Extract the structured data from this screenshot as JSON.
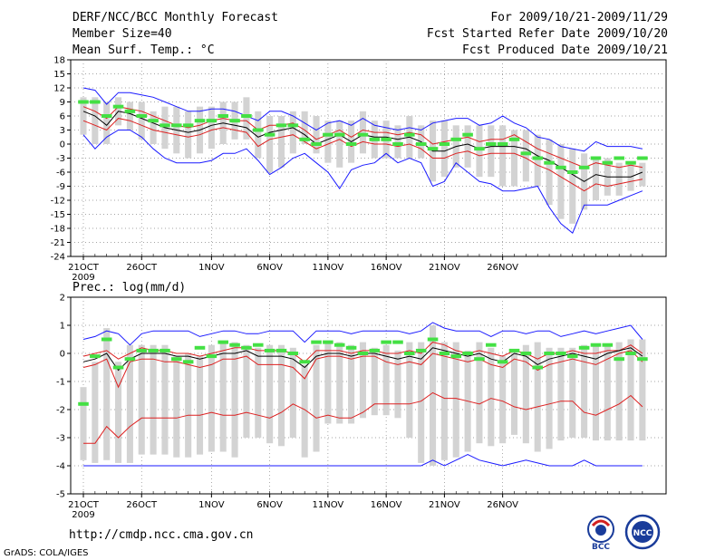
{
  "header": {
    "title": "DERF/NCC/BCC Monthly Forecast",
    "member": "Member Size=40",
    "variable": "Mean Surf. Temp.: °C",
    "for": "For 2009/10/21-2009/11/29",
    "started": "Fcst Started Refer Date 2009/10/20",
    "produced": "Fcst Produced Date 2009/10/21"
  },
  "footer": {
    "url": "http://cmdp.ncc.cma.gov.cn",
    "grads": "GrADS: COLA/IGES",
    "logo1": "BCC",
    "logo2": "NCC"
  },
  "colors": {
    "box": "#d3d3d3",
    "mean": "#44e044",
    "blue": "#1a1aff",
    "red": "#dd2020",
    "black": "#000000"
  },
  "chart_data": [
    {
      "type": "line",
      "title": "Mean Surf. Temp.: °C",
      "ylim": [
        -24,
        18
      ],
      "yticks": [
        18,
        15,
        12,
        9,
        6,
        3,
        0,
        -3,
        -6,
        -9,
        -12,
        -15,
        -18,
        -21,
        -24
      ],
      "x_tick_labels": [
        "21OCT",
        "26OCT",
        "1NOV",
        "6NOV",
        "11NOV",
        "16NOV",
        "21NOV",
        "26NOV"
      ],
      "x_tick_days": [
        0,
        5,
        11,
        16,
        21,
        26,
        31,
        36
      ],
      "x_sublabel": "2009",
      "series": [
        {
          "name": "max",
          "color": "blue",
          "values": [
            12,
            11.5,
            8.5,
            11,
            11,
            10.5,
            10,
            9,
            8,
            7,
            7,
            7.5,
            7.5,
            7,
            6,
            5,
            7,
            7,
            6,
            4.5,
            3,
            4.5,
            5,
            4,
            5.5,
            4,
            3.5,
            3,
            3.5,
            3,
            4.5,
            5,
            5.5,
            5.5,
            4,
            4.5,
            6,
            4.5,
            3.5,
            1.5,
            1,
            -0.5,
            -1,
            -1.5,
            0.5,
            -0.5,
            -0.5,
            -0.5,
            -1
          ]
        },
        {
          "name": "upper",
          "color": "red",
          "values": [
            8,
            7,
            5.5,
            8,
            7.5,
            7,
            6,
            5,
            4,
            3.5,
            4,
            5,
            5.5,
            5,
            5,
            3,
            4,
            4,
            4.5,
            3,
            1,
            2,
            3,
            1.5,
            3,
            2.5,
            2.5,
            2,
            2.5,
            2,
            0,
            0.5,
            1,
            1.5,
            0.5,
            1,
            1,
            2,
            0.5,
            -1,
            -2,
            -3,
            -4,
            -5,
            -4,
            -4.5,
            -5,
            -4.5,
            -5
          ]
        },
        {
          "name": "median",
          "color": "black",
          "values": [
            7,
            6,
            4,
            7,
            6.5,
            5.5,
            4.5,
            3.5,
            3,
            2.5,
            3,
            4,
            4.5,
            4,
            3.5,
            1.5,
            2.5,
            3,
            3.5,
            2,
            0,
            1,
            2,
            0.5,
            2,
            1.5,
            1.5,
            1,
            1.5,
            0.5,
            -1.5,
            -1.5,
            -0.5,
            0,
            -1,
            -0.5,
            -0.5,
            -0.5,
            -1,
            -2.5,
            -3.5,
            -5,
            -6.5,
            -8,
            -6.5,
            -7,
            -7,
            -7,
            -6
          ]
        },
        {
          "name": "lower",
          "color": "red",
          "values": [
            5,
            4,
            3,
            5.5,
            5,
            4,
            3,
            2.5,
            2,
            1.5,
            2,
            3,
            3.5,
            3,
            2.5,
            -0.5,
            1,
            1.5,
            2,
            0.5,
            -1,
            0,
            1,
            -0.5,
            0.5,
            0,
            0,
            -0.5,
            0,
            -1,
            -3,
            -3,
            -2,
            -1.5,
            -2.5,
            -2,
            -2,
            -2,
            -3,
            -4.5,
            -5.5,
            -7,
            -8.5,
            -10,
            -8.5,
            -9,
            -8.5,
            -8,
            -7.5
          ]
        },
        {
          "name": "min",
          "color": "blue",
          "values": [
            2,
            -1,
            1.5,
            3,
            3,
            1.5,
            -1,
            -3,
            -4,
            -4,
            -4,
            -3.5,
            -2,
            -2,
            -1,
            -3.5,
            -6.5,
            -5,
            -3,
            -2,
            -4,
            -6,
            -9.5,
            -5.5,
            -4.5,
            -4,
            -2,
            -4,
            -3,
            -4,
            -9,
            -8,
            -4,
            -6,
            -8,
            -8.5,
            -10,
            -10,
            -9.5,
            -9,
            -13.5,
            -17,
            -19,
            -13,
            -13,
            -13,
            -12,
            -11,
            -10
          ]
        }
      ],
      "box_top": [
        10,
        10,
        9,
        10,
        9,
        9,
        7,
        8,
        8,
        7,
        8,
        8,
        9,
        9,
        10,
        7,
        6,
        6,
        7,
        7,
        6,
        5,
        5,
        5,
        7,
        5,
        5,
        4,
        6,
        4,
        5,
        5,
        4,
        4,
        4,
        4,
        4,
        3,
        3,
        2,
        1,
        0,
        -1,
        -2,
        -3,
        -3,
        -4,
        -4,
        -4
      ],
      "box_bottom": [
        2,
        0,
        0,
        4,
        3,
        1,
        0,
        -1,
        -2,
        -3,
        -2,
        -1,
        0,
        1,
        1,
        -3,
        -6,
        -5,
        -2,
        0,
        -2,
        -4,
        -5,
        -4,
        -2,
        -3,
        -3,
        -3,
        -3,
        -3,
        -8,
        -7,
        -5,
        -5,
        -7,
        -7,
        -9,
        -9,
        -8,
        -9,
        -13,
        -16,
        -17,
        -14,
        -12,
        -11,
        -11,
        -10,
        -9
      ],
      "mean_marks": [
        9,
        9,
        6,
        8,
        7,
        6,
        5,
        4,
        4,
        4,
        5,
        5,
        6,
        5,
        6,
        3,
        2,
        4,
        4,
        1,
        0,
        2,
        2,
        0,
        2,
        1,
        1,
        0,
        2,
        0,
        -1,
        0,
        1,
        2,
        -1,
        0,
        0,
        1,
        -2,
        -3,
        -4,
        -5,
        -6,
        -5,
        -3,
        -4,
        -3,
        -4,
        -3
      ]
    },
    {
      "type": "line",
      "title": "Prec.: log(mm/d)",
      "ylim": [
        -5,
        2
      ],
      "yticks": [
        2,
        1,
        0,
        -1,
        -2,
        -3,
        -4,
        -5
      ],
      "x_tick_labels": [
        "21OCT",
        "26OCT",
        "1NOV",
        "6NOV",
        "11NOV",
        "16NOV",
        "21NOV",
        "26NOV"
      ],
      "x_tick_days": [
        0,
        5,
        11,
        16,
        21,
        26,
        31,
        36
      ],
      "x_sublabel": "2009",
      "series": [
        {
          "name": "max",
          "color": "blue",
          "values": [
            0.5,
            0.6,
            0.8,
            0.7,
            0.3,
            0.7,
            0.8,
            0.8,
            0.8,
            0.8,
            0.6,
            0.7,
            0.8,
            0.8,
            0.7,
            0.7,
            0.8,
            0.8,
            0.8,
            0.4,
            0.8,
            0.8,
            0.8,
            0.7,
            0.8,
            0.8,
            0.8,
            0.8,
            0.7,
            0.8,
            1.1,
            0.9,
            0.8,
            0.8,
            0.8,
            0.6,
            0.8,
            0.8,
            0.7,
            0.8,
            0.8,
            0.6,
            0.7,
            0.8,
            0.7,
            0.8,
            0.9,
            1.0,
            0.5
          ]
        },
        {
          "name": "upper",
          "color": "red",
          "values": [
            -0.1,
            0.0,
            0.1,
            -0.2,
            0.0,
            0.2,
            0.1,
            0.1,
            0.0,
            0.0,
            -0.1,
            0.0,
            0.1,
            0.2,
            0.2,
            0.1,
            0.1,
            0.1,
            0.0,
            -0.3,
            0.1,
            0.1,
            0.1,
            0.0,
            0.1,
            0.1,
            0.0,
            0.0,
            0.1,
            0.0,
            0.4,
            0.3,
            0.1,
            0.0,
            0.1,
            0.0,
            -0.1,
            0.1,
            0.0,
            -0.2,
            0.0,
            0.0,
            0.1,
            0.0,
            0.0,
            0.1,
            0.1,
            0.3,
            0.0
          ]
        },
        {
          "name": "median",
          "color": "black",
          "values": [
            -0.3,
            -0.2,
            0.0,
            -0.6,
            -0.2,
            0.0,
            0.0,
            0.0,
            -0.1,
            -0.1,
            -0.2,
            -0.1,
            0.0,
            0.0,
            0.1,
            -0.1,
            -0.1,
            -0.1,
            -0.2,
            -0.5,
            -0.1,
            0.0,
            0.0,
            -0.1,
            0.0,
            0.0,
            -0.1,
            -0.2,
            -0.1,
            -0.2,
            0.2,
            0.1,
            0.0,
            -0.1,
            0.0,
            -0.2,
            -0.3,
            0.0,
            -0.1,
            -0.4,
            -0.2,
            -0.1,
            0.0,
            -0.1,
            -0.2,
            0.0,
            0.1,
            0.2,
            -0.1
          ]
        },
        {
          "name": "lower",
          "color": "red",
          "values": [
            -0.5,
            -0.4,
            -0.2,
            -1.2,
            -0.3,
            -0.2,
            -0.2,
            -0.3,
            -0.3,
            -0.4,
            -0.5,
            -0.4,
            -0.2,
            -0.2,
            -0.1,
            -0.4,
            -0.4,
            -0.4,
            -0.5,
            -0.9,
            -0.2,
            -0.1,
            -0.1,
            -0.2,
            -0.1,
            -0.1,
            -0.3,
            -0.4,
            -0.3,
            -0.4,
            0.0,
            -0.1,
            -0.2,
            -0.3,
            -0.2,
            -0.4,
            -0.5,
            -0.2,
            -0.3,
            -0.6,
            -0.4,
            -0.3,
            -0.2,
            -0.3,
            -0.4,
            -0.2,
            0.0,
            0.1,
            -0.3
          ]
        },
        {
          "name": "lower2",
          "color": "red",
          "values": [
            -3.2,
            -3.2,
            -2.6,
            -3.0,
            -2.6,
            -2.3,
            -2.3,
            -2.3,
            -2.3,
            -2.2,
            -2.2,
            -2.1,
            -2.2,
            -2.2,
            -2.1,
            -2.2,
            -2.3,
            -2.1,
            -1.8,
            -2.0,
            -2.3,
            -2.2,
            -2.3,
            -2.3,
            -2.1,
            -1.8,
            -1.8,
            -1.8,
            -1.8,
            -1.7,
            -1.4,
            -1.6,
            -1.6,
            -1.7,
            -1.8,
            -1.6,
            -1.7,
            -1.9,
            -2.0,
            -1.9,
            -1.8,
            -1.7,
            -1.7,
            -2.1,
            -2.2,
            -2.0,
            -1.8,
            -1.5,
            -1.9
          ]
        },
        {
          "name": "min",
          "color": "blue",
          "values": [
            -4.0,
            -4.0,
            -4.0,
            -4.0,
            -4.0,
            -4.0,
            -4.0,
            -4.0,
            -4.0,
            -4.0,
            -4.0,
            -4.0,
            -4.0,
            -4.0,
            -4.0,
            -4.0,
            -4.0,
            -4.0,
            -4.0,
            -4.0,
            -4.0,
            -4.0,
            -4.0,
            -4.0,
            -4.0,
            -4.0,
            -4.0,
            -4.0,
            -4.0,
            -4.0,
            -3.8,
            -4.0,
            -3.8,
            -3.6,
            -3.8,
            -3.9,
            -4.0,
            -3.9,
            -3.8,
            -3.9,
            -4.0,
            -4.0,
            -4.0,
            -3.8,
            -4.0,
            -4.0,
            -4.0,
            -4.0,
            -4.0
          ]
        }
      ],
      "box_top": [
        -1.2,
        -0.3,
        0.9,
        -0.3,
        0.3,
        0.3,
        0.3,
        0.3,
        -0.1,
        0.0,
        -0.1,
        0.3,
        0.4,
        0.4,
        0.3,
        0.2,
        0.3,
        0.3,
        0.2,
        -0.4,
        0.3,
        0.4,
        0.4,
        0.3,
        0.4,
        0.2,
        0.3,
        0.1,
        0.4,
        0.4,
        1.0,
        0.4,
        0.4,
        0.1,
        0.4,
        0.2,
        -0.1,
        0.1,
        0.3,
        0.4,
        0.2,
        0.2,
        0.2,
        0.3,
        0.3,
        0.3,
        0.4,
        0.5,
        0.5
      ],
      "box_bottom": [
        -3.8,
        -3.9,
        -3.8,
        -3.9,
        -3.9,
        -3.6,
        -3.6,
        -3.6,
        -3.7,
        -3.7,
        -3.6,
        -3.5,
        -3.5,
        -3.7,
        -3.0,
        -3.0,
        -3.2,
        -3.3,
        -3.0,
        -3.7,
        -3.5,
        -2.5,
        -2.5,
        -2.5,
        -2.3,
        -2.2,
        -2.2,
        -2.3,
        -3.0,
        -3.9,
        -4.0,
        -3.8,
        -3.7,
        -3.5,
        -3.2,
        -3.3,
        -3.2,
        -2.9,
        -3.2,
        -3.5,
        -3.4,
        -3.1,
        -3.0,
        -3.0,
        -3.1,
        -3.1,
        -3.1,
        -3.1,
        -3.1
      ],
      "mean_marks": [
        -1.8,
        -0.1,
        0.5,
        -0.5,
        -0.2,
        0.1,
        0.1,
        0.1,
        -0.2,
        -0.3,
        0.2,
        -0.1,
        0.4,
        0.3,
        0.2,
        0.3,
        0.1,
        0.1,
        0.0,
        -0.3,
        0.4,
        0.4,
        0.3,
        0.2,
        0.0,
        0.1,
        0.4,
        0.4,
        0.0,
        0.1,
        0.5,
        0.0,
        -0.1,
        0.0,
        -0.2,
        0.3,
        -0.3,
        0.1,
        0.0,
        -0.5,
        0.0,
        0.0,
        -0.1,
        0.2,
        0.3,
        0.3,
        -0.2,
        0.0,
        -0.2
      ]
    }
  ]
}
